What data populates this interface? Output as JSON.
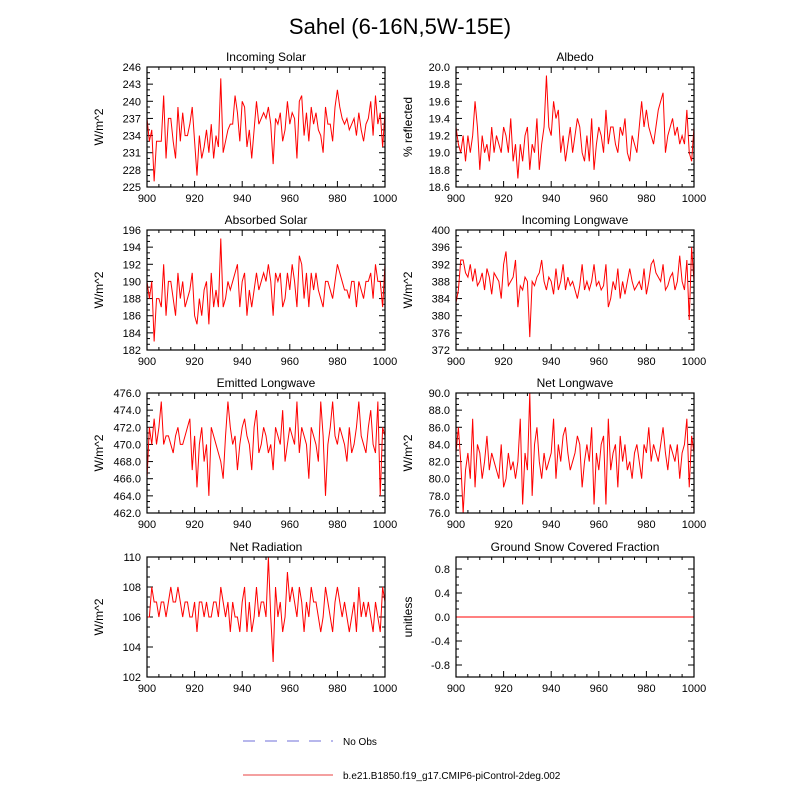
{
  "page_title": "Sahel (6-16N,5W-15E)",
  "legend": {
    "items": [
      {
        "label": "No Obs",
        "color": "#9f9fe6",
        "style": "dashed"
      },
      {
        "label": "b.e21.B1850.f19_g17.CMIP6-piControl-2deg.002",
        "color": "#f08080",
        "style": "solid"
      }
    ]
  },
  "chart_data": [
    {
      "type": "line",
      "title": "Incoming Solar",
      "ylabel": "W/m^2",
      "xlim": [
        900,
        1000
      ],
      "ylim": [
        225,
        246
      ],
      "xticks": [
        900,
        920,
        940,
        960,
        980,
        1000
      ],
      "yticks": [
        "225",
        "228",
        "231",
        "234",
        "237",
        "240",
        "243",
        "246"
      ],
      "x_start": 900,
      "series": [
        {
          "name": "b.e21.B1850.f19_g17.CMIP6-piControl-2deg.002",
          "color": "#ff0000",
          "values": [
            237,
            233,
            235,
            226,
            233,
            233,
            233,
            241,
            230,
            237,
            237,
            233,
            230,
            239,
            233,
            238,
            234,
            234,
            236,
            239,
            233,
            227,
            234,
            230,
            232,
            235,
            231,
            236,
            230,
            234,
            232,
            244,
            231,
            233,
            235,
            236,
            236,
            241,
            238,
            233,
            240,
            239,
            232,
            235,
            230,
            235,
            240,
            236,
            237,
            238,
            237,
            239,
            236,
            229,
            237,
            236,
            238,
            233,
            235,
            240,
            236,
            238,
            237,
            230,
            240,
            241,
            234,
            238,
            233,
            239,
            236,
            238,
            235,
            234,
            231,
            239,
            236,
            236,
            233,
            239,
            242,
            239,
            237,
            236,
            237,
            235,
            236,
            237,
            234,
            238,
            235,
            233,
            236,
            237,
            240,
            234,
            241,
            236,
            238,
            232,
            238
          ]
        }
      ]
    },
    {
      "type": "line",
      "title": "Albedo",
      "ylabel": "% reflected",
      "xlim": [
        900,
        1000
      ],
      "ylim": [
        18.6,
        20.0
      ],
      "xticks": [
        900,
        920,
        940,
        960,
        980,
        1000
      ],
      "yticks": [
        "18.6",
        "18.8",
        "19.0",
        "19.2",
        "19.4",
        "19.6",
        "19.8",
        "20.0"
      ],
      "x_start": 900,
      "series": [
        {
          "name": "b.e21.B1850.f19_g17.CMIP6-piControl-2deg.002",
          "color": "#ff0000",
          "values": [
            19.3,
            19.1,
            19.0,
            19.2,
            18.9,
            19.2,
            19.0,
            19.2,
            19.6,
            19.3,
            18.8,
            19.2,
            19.0,
            19.1,
            18.9,
            19.3,
            19.0,
            19.2,
            19.1,
            19.0,
            19.3,
            19.2,
            19.0,
            19.4,
            18.9,
            19.1,
            18.7,
            19.1,
            18.9,
            19.2,
            19.3,
            18.8,
            19.1,
            19.0,
            19.4,
            18.8,
            19.1,
            19.3,
            19.9,
            19.3,
            19.2,
            19.6,
            19.4,
            19.5,
            19.0,
            19.2,
            18.9,
            19.1,
            19.3,
            19.0,
            19.2,
            19.4,
            19.3,
            19.0,
            18.9,
            19.2,
            18.9,
            19.4,
            18.8,
            19.1,
            19.3,
            19.2,
            19.0,
            19.5,
            19.1,
            19.3,
            19.3,
            19.1,
            19.0,
            19.3,
            19.2,
            19.4,
            19.0,
            18.9,
            19.2,
            19.1,
            19.0,
            19.3,
            19.6,
            19.3,
            19.5,
            19.3,
            19.2,
            19.1,
            19.3,
            19.5,
            19.6,
            19.7,
            19.0,
            19.2,
            19.3,
            19.4,
            19.2,
            19.3,
            19.1,
            19.2,
            19.1,
            19.5,
            19.0,
            18.9,
            19.3
          ]
        }
      ]
    },
    {
      "type": "line",
      "title": "Absorbed Solar",
      "ylabel": "W/m^2",
      "xlim": [
        900,
        1000
      ],
      "ylim": [
        182,
        196
      ],
      "xticks": [
        900,
        920,
        940,
        960,
        980,
        1000
      ],
      "yticks": [
        "182",
        "184",
        "186",
        "188",
        "190",
        "192",
        "194",
        "196"
      ],
      "x_start": 900,
      "series": [
        {
          "name": "b.e21.B1850.f19_g17.CMIP6-piControl-2deg.002",
          "color": "#ff0000",
          "values": [
            190,
            188,
            190,
            183,
            188,
            188,
            187,
            192,
            186,
            190,
            190,
            188,
            186,
            191,
            188,
            190,
            187,
            188,
            189,
            191,
            186,
            185,
            188,
            186,
            189,
            190,
            185,
            191,
            187,
            189,
            187,
            195,
            187,
            188,
            190,
            189,
            190,
            191,
            192,
            187,
            190,
            191,
            186,
            189,
            187,
            189,
            191,
            189,
            190,
            191,
            190,
            192,
            190,
            186,
            191,
            190,
            191,
            187,
            188,
            191,
            189,
            192,
            190,
            187,
            193,
            192,
            188,
            191,
            187,
            191,
            189,
            191,
            189,
            188,
            187,
            190,
            190,
            189,
            188,
            190,
            192,
            191,
            190,
            189,
            189,
            188,
            190,
            190,
            187,
            190,
            189,
            188,
            190,
            190,
            191,
            188,
            192,
            190,
            190,
            187,
            192
          ]
        }
      ]
    },
    {
      "type": "line",
      "title": "Incoming Longwave",
      "ylabel": "W/m^2",
      "xlim": [
        900,
        1000
      ],
      "ylim": [
        372,
        400
      ],
      "xticks": [
        900,
        920,
        940,
        960,
        980,
        1000
      ],
      "yticks": [
        "372",
        "376",
        "380",
        "384",
        "388",
        "392",
        "396",
        "400"
      ],
      "x_start": 900,
      "series": [
        {
          "name": "b.e21.B1850.f19_g17.CMIP6-piControl-2deg.002",
          "color": "#ff0000",
          "values": [
            383,
            386,
            393,
            393,
            390,
            389,
            392,
            388,
            391,
            387,
            388,
            390,
            386,
            391,
            389,
            385,
            390,
            389,
            388,
            384,
            392,
            395,
            387,
            388,
            389,
            393,
            382,
            387,
            386,
            389,
            388,
            375,
            388,
            387,
            389,
            390,
            393,
            388,
            386,
            389,
            388,
            385,
            391,
            386,
            388,
            392,
            386,
            389,
            387,
            388,
            386,
            384,
            387,
            392,
            386,
            388,
            386,
            388,
            392,
            387,
            388,
            386,
            387,
            392,
            382,
            384,
            388,
            386,
            391,
            384,
            388,
            385,
            388,
            391,
            388,
            386,
            387,
            388,
            386,
            391,
            385,
            388,
            392,
            393,
            390,
            389,
            388,
            392,
            386,
            387,
            389,
            390,
            386,
            388,
            394,
            388,
            386,
            393,
            379,
            396,
            388
          ]
        }
      ]
    },
    {
      "type": "line",
      "title": "Emitted Longwave",
      "ylabel": "W/m^2",
      "xlim": [
        900,
        1000
      ],
      "ylim": [
        462,
        476
      ],
      "xticks": [
        900,
        920,
        940,
        960,
        980,
        1000
      ],
      "yticks": [
        "462.0",
        "464.0",
        "466.0",
        "468.0",
        "470.0",
        "472.0",
        "474.0",
        "476.0"
      ],
      "x_start": 900,
      "series": [
        {
          "name": "b.e21.B1850.f19_g17.CMIP6-piControl-2deg.002",
          "color": "#ff0000",
          "values": [
            466,
            472,
            470,
            473,
            470,
            472,
            475,
            470,
            471,
            471,
            470,
            469,
            471,
            472,
            470,
            470,
            471,
            472,
            473,
            467,
            471,
            465,
            470,
            472,
            468,
            470,
            464,
            472,
            471,
            470,
            469,
            468,
            466,
            471,
            475,
            472,
            470,
            471,
            467,
            470,
            472,
            473,
            471,
            470,
            467,
            472,
            474,
            469,
            470,
            472,
            471,
            469,
            470,
            467,
            472,
            471,
            470,
            474,
            468,
            470,
            472,
            471,
            470,
            475,
            469,
            472,
            471,
            470,
            466,
            472,
            471,
            470,
            468,
            475,
            471,
            464,
            470,
            472,
            475,
            471,
            470,
            472,
            471,
            470,
            468,
            472,
            469,
            470,
            472,
            475,
            471,
            470,
            469,
            472,
            474,
            470,
            469,
            475,
            464,
            472,
            471
          ]
        }
      ]
    },
    {
      "type": "line",
      "title": "Net Longwave",
      "ylabel": "W/m^2",
      "xlim": [
        900,
        1000
      ],
      "ylim": [
        76,
        90
      ],
      "xticks": [
        900,
        920,
        940,
        960,
        980,
        1000
      ],
      "yticks": [
        "76.0",
        "78.0",
        "80.0",
        "82.0",
        "84.0",
        "86.0",
        "88.0",
        "90.0"
      ],
      "x_start": 900,
      "series": [
        {
          "name": "b.e21.B1850.f19_g17.CMIP6-piControl-2deg.002",
          "color": "#ff0000",
          "values": [
            83,
            86,
            82,
            76,
            81,
            83,
            80,
            87,
            79,
            84,
            83,
            80,
            82,
            85,
            81,
            83,
            82,
            81,
            80,
            84,
            79,
            80,
            83,
            81,
            82,
            80,
            82,
            87,
            77,
            83,
            81,
            90,
            78,
            84,
            86,
            82,
            80,
            83,
            81,
            82,
            83,
            87,
            80,
            84,
            82,
            85,
            86,
            83,
            81,
            82,
            83,
            85,
            84,
            79,
            82,
            84,
            82,
            86,
            77,
            83,
            81,
            84,
            85,
            77,
            87,
            81,
            83,
            84,
            79,
            85,
            82,
            84,
            81,
            82,
            80,
            83,
            84,
            82,
            80,
            84,
            83,
            86,
            82,
            84,
            83,
            82,
            84,
            86,
            83,
            81,
            84,
            83,
            82,
            84,
            80,
            83,
            84,
            87,
            79,
            85,
            83
          ]
        }
      ]
    },
    {
      "type": "line",
      "title": "Net Radiation",
      "ylabel": "W/m^2",
      "xlim": [
        900,
        1000
      ],
      "ylim": [
        102,
        110
      ],
      "xticks": [
        900,
        920,
        940,
        960,
        980,
        1000
      ],
      "yticks": [
        "102",
        "104",
        "106",
        "108",
        "110"
      ],
      "x_start": 900,
      "series": [
        {
          "name": "b.e21.B1850.f19_g17.CMIP6-piControl-2deg.002",
          "color": "#ff0000",
          "values": [
            106,
            106,
            108,
            107,
            107,
            106,
            107,
            107,
            106,
            107,
            108,
            107,
            107,
            108,
            107,
            106,
            107,
            107,
            106,
            106,
            107,
            105,
            107,
            107,
            106,
            107,
            106,
            106,
            107,
            107,
            106,
            108,
            107,
            106,
            107,
            105,
            107,
            106,
            106,
            105,
            107,
            108,
            105,
            107,
            105,
            106,
            108,
            106,
            107,
            107,
            106,
            110,
            106,
            103,
            108,
            106,
            107,
            105,
            106,
            109,
            107,
            108,
            107,
            106,
            108,
            107,
            105,
            107,
            106,
            108,
            107,
            107,
            106,
            105,
            106,
            108,
            107,
            106,
            105,
            107,
            108,
            107,
            106,
            107,
            106,
            105,
            106,
            107,
            105,
            108,
            106,
            107,
            106,
            107,
            106,
            105,
            107,
            106,
            105,
            108,
            107
          ]
        }
      ]
    },
    {
      "type": "line",
      "title": "Ground Snow Covered Fraction",
      "ylabel": "unitless",
      "xlim": [
        900,
        1000
      ],
      "ylim": [
        -1.0,
        1.0
      ],
      "xticks": [
        900,
        920,
        940,
        960,
        980,
        1000
      ],
      "yticks": [
        "-0.8",
        "-0.4",
        "0.0",
        "0.4",
        "0.8"
      ],
      "x_start": 900,
      "series": [
        {
          "name": "b.e21.B1850.f19_g17.CMIP6-piControl-2deg.002",
          "color": "#ff0000",
          "values": [
            0,
            0,
            0,
            0,
            0,
            0,
            0,
            0,
            0,
            0,
            0,
            0,
            0,
            0,
            0,
            0,
            0,
            0,
            0,
            0,
            0,
            0,
            0,
            0,
            0,
            0,
            0,
            0,
            0,
            0,
            0,
            0,
            0,
            0,
            0,
            0,
            0,
            0,
            0,
            0,
            0,
            0,
            0,
            0,
            0,
            0,
            0,
            0,
            0,
            0,
            0,
            0,
            0,
            0,
            0,
            0,
            0,
            0,
            0,
            0,
            0,
            0,
            0,
            0,
            0,
            0,
            0,
            0,
            0,
            0,
            0,
            0,
            0,
            0,
            0,
            0,
            0,
            0,
            0,
            0,
            0,
            0,
            0,
            0,
            0,
            0,
            0,
            0,
            0,
            0,
            0,
            0,
            0,
            0,
            0,
            0,
            0,
            0,
            0,
            0,
            0
          ]
        }
      ]
    }
  ]
}
